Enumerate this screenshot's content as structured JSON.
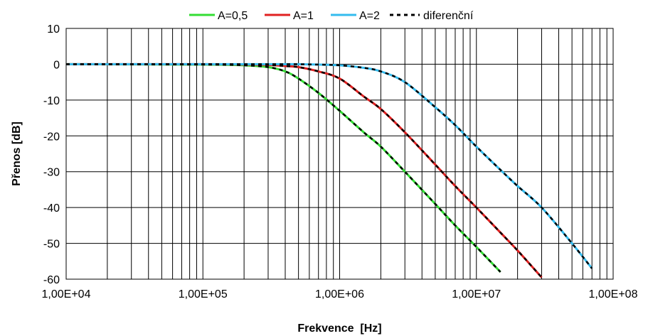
{
  "chart_data": {
    "type": "line",
    "title": "",
    "xlabel": "Frekvence  [Hz]",
    "ylabel": "Přenos [dB]",
    "xscale": "log",
    "xlim": [
      10000,
      100000000
    ],
    "ylim": [
      -60,
      10
    ],
    "grid": true,
    "legend_position": "top",
    "x_ticks": [
      "1,00E+04",
      "1,00E+05",
      "1,00E+06",
      "1,00E+07",
      "1,00E+08"
    ],
    "y_ticks": [
      "10",
      "0",
      "-10",
      "-20",
      "-30",
      "-40",
      "-50",
      "-60"
    ],
    "x": [
      10000,
      100000,
      200000,
      300000,
      400000,
      500000,
      700000,
      1000000,
      1500000,
      2000000,
      3000000,
      5000000,
      7000000,
      10000000,
      15000000,
      20000000,
      30000000,
      50000000,
      70000000
    ],
    "series": [
      {
        "name": "A=0,5",
        "color": "#33dd33",
        "values": [
          0.0,
          -0.1,
          -0.3,
          -0.8,
          -2.0,
          -4.0,
          -8.0,
          -13.0,
          -19.0,
          -23.0,
          -30.0,
          -39.0,
          -45.0,
          -51.0,
          -58.0,
          null,
          null,
          null,
          null
        ]
      },
      {
        "name": "A=1",
        "color": "#e02020",
        "values": [
          0.0,
          0.0,
          -0.1,
          -0.2,
          -0.5,
          -0.8,
          -2.0,
          -4.0,
          -9.0,
          -12.5,
          -19.0,
          -28.0,
          -34.0,
          -40.0,
          -47.0,
          -52.0,
          -59.5,
          null,
          null
        ]
      },
      {
        "name": "A=2",
        "color": "#33bbee",
        "values": [
          0.0,
          0.0,
          0.0,
          0.0,
          0.0,
          0.0,
          -0.1,
          -0.3,
          -1.0,
          -2.0,
          -5.0,
          -12.0,
          -17.0,
          -23.0,
          -29.5,
          -34.0,
          -40.0,
          -50.0,
          -57.0
        ]
      },
      {
        "name": "diferenční",
        "color": "#000000",
        "dashed": true,
        "values": [
          0.0,
          0.0,
          0.0,
          0.0,
          0.0,
          0.0,
          -0.1,
          -0.3,
          -1.0,
          -2.0,
          -5.0,
          -12.0,
          -17.0,
          -23.0,
          -29.5,
          -34.0,
          -40.0,
          -50.0,
          -57.0
        ]
      }
    ]
  }
}
